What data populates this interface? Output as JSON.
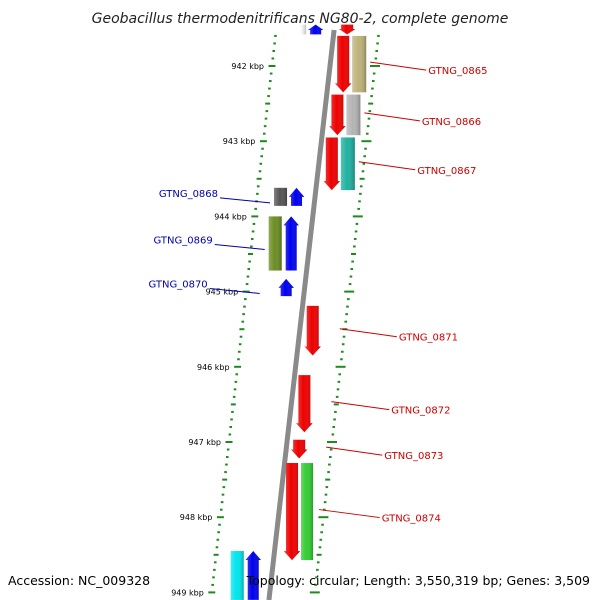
{
  "title": "Geobacillus thermodenitrificans NG80-2, complete genome",
  "footer": {
    "accession": "Accession: NC_009328",
    "summary": "Topology: circular; Length: 3,550,319 bp; Genes: 3,509"
  },
  "ticks": {
    "unit": "kbp",
    "major_labels": [
      "942 kbp",
      "943 kbp",
      "944 kbp",
      "945 kbp",
      "946 kbp",
      "947 kbp",
      "948 kbp",
      "949 kbp"
    ]
  },
  "colors": {
    "backbone": "#8a8a8a",
    "tick": "#1e8a1e",
    "forward_label": "#cc0000",
    "reverse_label": "#0000aa",
    "forward_gene": "#ee0000",
    "reverse_gene": "#0000ee"
  },
  "genes": [
    {
      "label": "GTNG_0865",
      "strand": "forward",
      "start_kbp": 941.6,
      "end_kbp": 942.35,
      "cog_color": "#bdb27a"
    },
    {
      "label": "GTNG_0866",
      "strand": "forward",
      "start_kbp": 942.38,
      "end_kbp": 942.92,
      "cog_color": "#b4b4b4"
    },
    {
      "label": "GTNG_0867",
      "strand": "forward",
      "start_kbp": 942.95,
      "end_kbp": 943.65,
      "cog_color": "#1fb0a0"
    },
    {
      "label": "GTNG_0868",
      "strand": "reverse",
      "start_kbp": 943.62,
      "end_kbp": 943.86,
      "cog_color": "#555555"
    },
    {
      "label": "GTNG_0869",
      "strand": "reverse",
      "start_kbp": 944.0,
      "end_kbp": 944.72,
      "cog_color": "#6b8e23"
    },
    {
      "label": "GTNG_0870",
      "strand": "reverse",
      "start_kbp": 944.83,
      "end_kbp": 945.06,
      "cog_color": ""
    },
    {
      "label": "GTNG_0871",
      "strand": "forward",
      "start_kbp": 945.19,
      "end_kbp": 945.85,
      "cog_color": ""
    },
    {
      "label": "GTNG_0872",
      "strand": "forward",
      "start_kbp": 946.11,
      "end_kbp": 946.87,
      "cog_color": ""
    },
    {
      "label": "GTNG_0873",
      "strand": "forward",
      "start_kbp": 946.97,
      "end_kbp": 947.22,
      "cog_color": ""
    },
    {
      "label": "GTNG_0874",
      "strand": "forward",
      "start_kbp": 947.28,
      "end_kbp": 948.57,
      "cog_color": "#33cc33"
    },
    {
      "label": "",
      "strand": "reverse",
      "start_kbp": 948.45,
      "end_kbp": 949.1,
      "cog_color": "#00e5ee"
    },
    {
      "label": "",
      "strand": "forward",
      "start_kbp": 941.45,
      "end_kbp": 941.58,
      "cog_color": ""
    },
    {
      "label": "",
      "strand": "reverse",
      "start_kbp": 941.45,
      "end_kbp": 941.58,
      "cog_color": "#ffffff"
    }
  ]
}
